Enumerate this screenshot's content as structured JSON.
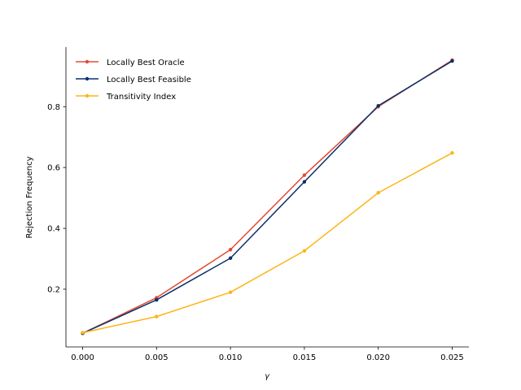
{
  "chart_data": {
    "type": "line",
    "title": "",
    "xlabel": "γ",
    "ylabel": "Rejection Frequency",
    "x": [
      0.0,
      0.005,
      0.01,
      0.015,
      0.02,
      0.025
    ],
    "x_tick_labels": [
      "0.000",
      "0.005",
      "0.010",
      "0.015",
      "0.020",
      "0.025"
    ],
    "y_ticks": [
      0.2,
      0.4,
      0.6,
      0.8
    ],
    "y_tick_labels": [
      "0.2",
      "0.4",
      "0.6",
      "0.8"
    ],
    "xlim": [
      -0.00113,
      0.02613
    ],
    "ylim": [
      0.0102,
      0.9957
    ],
    "grid": false,
    "legend_position": "top-left",
    "series": [
      {
        "name": "Locally Best Oracle",
        "color": "#e34a33",
        "values": [
          0.055,
          0.172,
          0.33,
          0.575,
          0.8,
          0.953
        ]
      },
      {
        "name": "Locally Best Feasible",
        "color": "#08306b",
        "values": [
          0.055,
          0.165,
          0.302,
          0.553,
          0.803,
          0.95
        ]
      },
      {
        "name": "Transitivity Index",
        "color": "#fdb515",
        "values": [
          0.057,
          0.11,
          0.19,
          0.326,
          0.517,
          0.648
        ]
      }
    ]
  }
}
